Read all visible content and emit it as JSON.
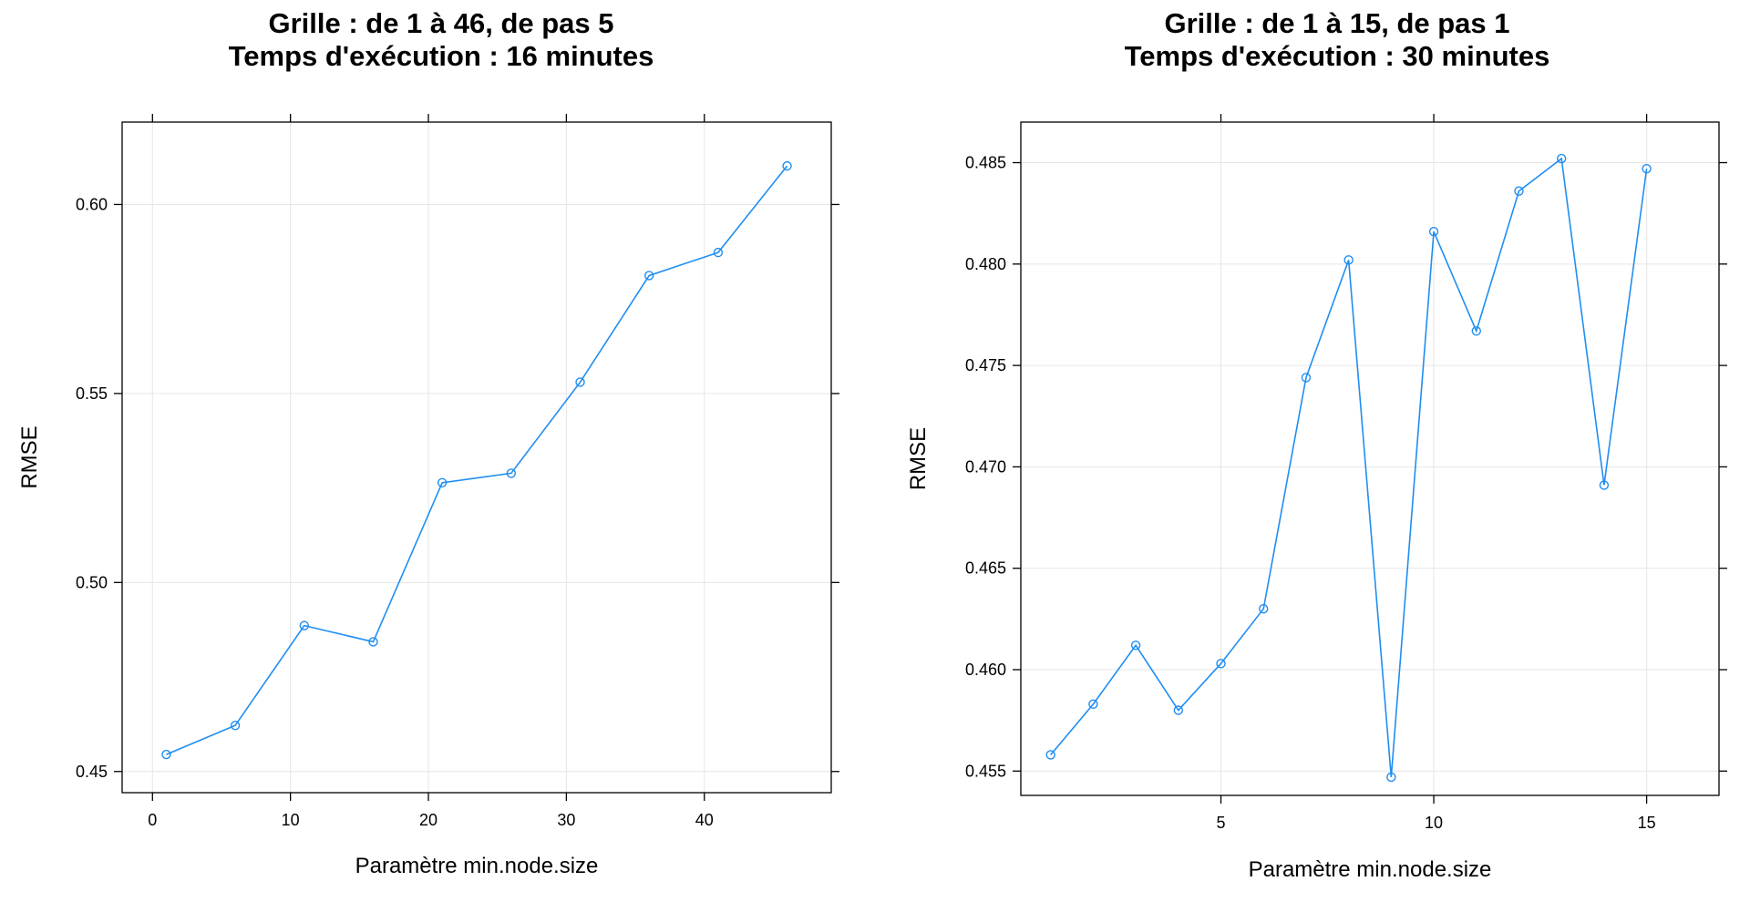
{
  "colors": {
    "series": "#1f8ef1",
    "grid": "#e6e6e6",
    "frame": "#000000"
  },
  "chart_data": [
    {
      "type": "line",
      "title": "Grille : de 1 à 46, de pas 5",
      "subtitle": "Temps d'exécution : 16 minutes",
      "xlabel": "Paramètre min.node.size",
      "ylabel": "RMSE",
      "xlim": [
        -2.2,
        49.2
      ],
      "ylim": [
        0.4444,
        0.6218
      ],
      "xticks": [
        0,
        10,
        20,
        30,
        40
      ],
      "xtick_labels": [
        "0",
        "10",
        "20",
        "30",
        "40"
      ],
      "yticks": [
        0.45,
        0.5,
        0.55,
        0.6
      ],
      "ytick_labels": [
        "0.45",
        "0.50",
        "0.55",
        "0.60"
      ],
      "grid": true,
      "markers": "open-circle",
      "x": [
        1,
        6,
        11,
        16,
        21,
        26,
        31,
        36,
        41,
        46
      ],
      "y": [
        0.4545,
        0.4622,
        0.4886,
        0.4843,
        0.5264,
        0.5289,
        0.553,
        0.5812,
        0.5873,
        0.6102
      ]
    },
    {
      "type": "line",
      "title": "Grille : de 1 à 15, de pas 1",
      "subtitle": "Temps d'exécution : 30 minutes",
      "xlabel": "Paramètre min.node.size",
      "ylabel": "RMSE",
      "xlim": [
        0.3,
        16.7
      ],
      "ylim": [
        0.4538,
        0.487
      ],
      "xticks": [
        5,
        10,
        15
      ],
      "xtick_labels": [
        "5",
        "10",
        "15"
      ],
      "yticks": [
        0.455,
        0.46,
        0.465,
        0.47,
        0.475,
        0.48,
        0.485
      ],
      "ytick_labels": [
        "0.455",
        "0.460",
        "0.465",
        "0.470",
        "0.475",
        "0.480",
        "0.485"
      ],
      "grid": true,
      "markers": "open-circle",
      "x": [
        1,
        2,
        3,
        4,
        5,
        6,
        7,
        8,
        9,
        10,
        11,
        12,
        13,
        14,
        15
      ],
      "y": [
        0.4558,
        0.4583,
        0.4612,
        0.458,
        0.4603,
        0.463,
        0.4744,
        0.4802,
        0.4547,
        0.4816,
        0.4767,
        0.4836,
        0.4852,
        0.4691,
        0.4847
      ]
    }
  ]
}
